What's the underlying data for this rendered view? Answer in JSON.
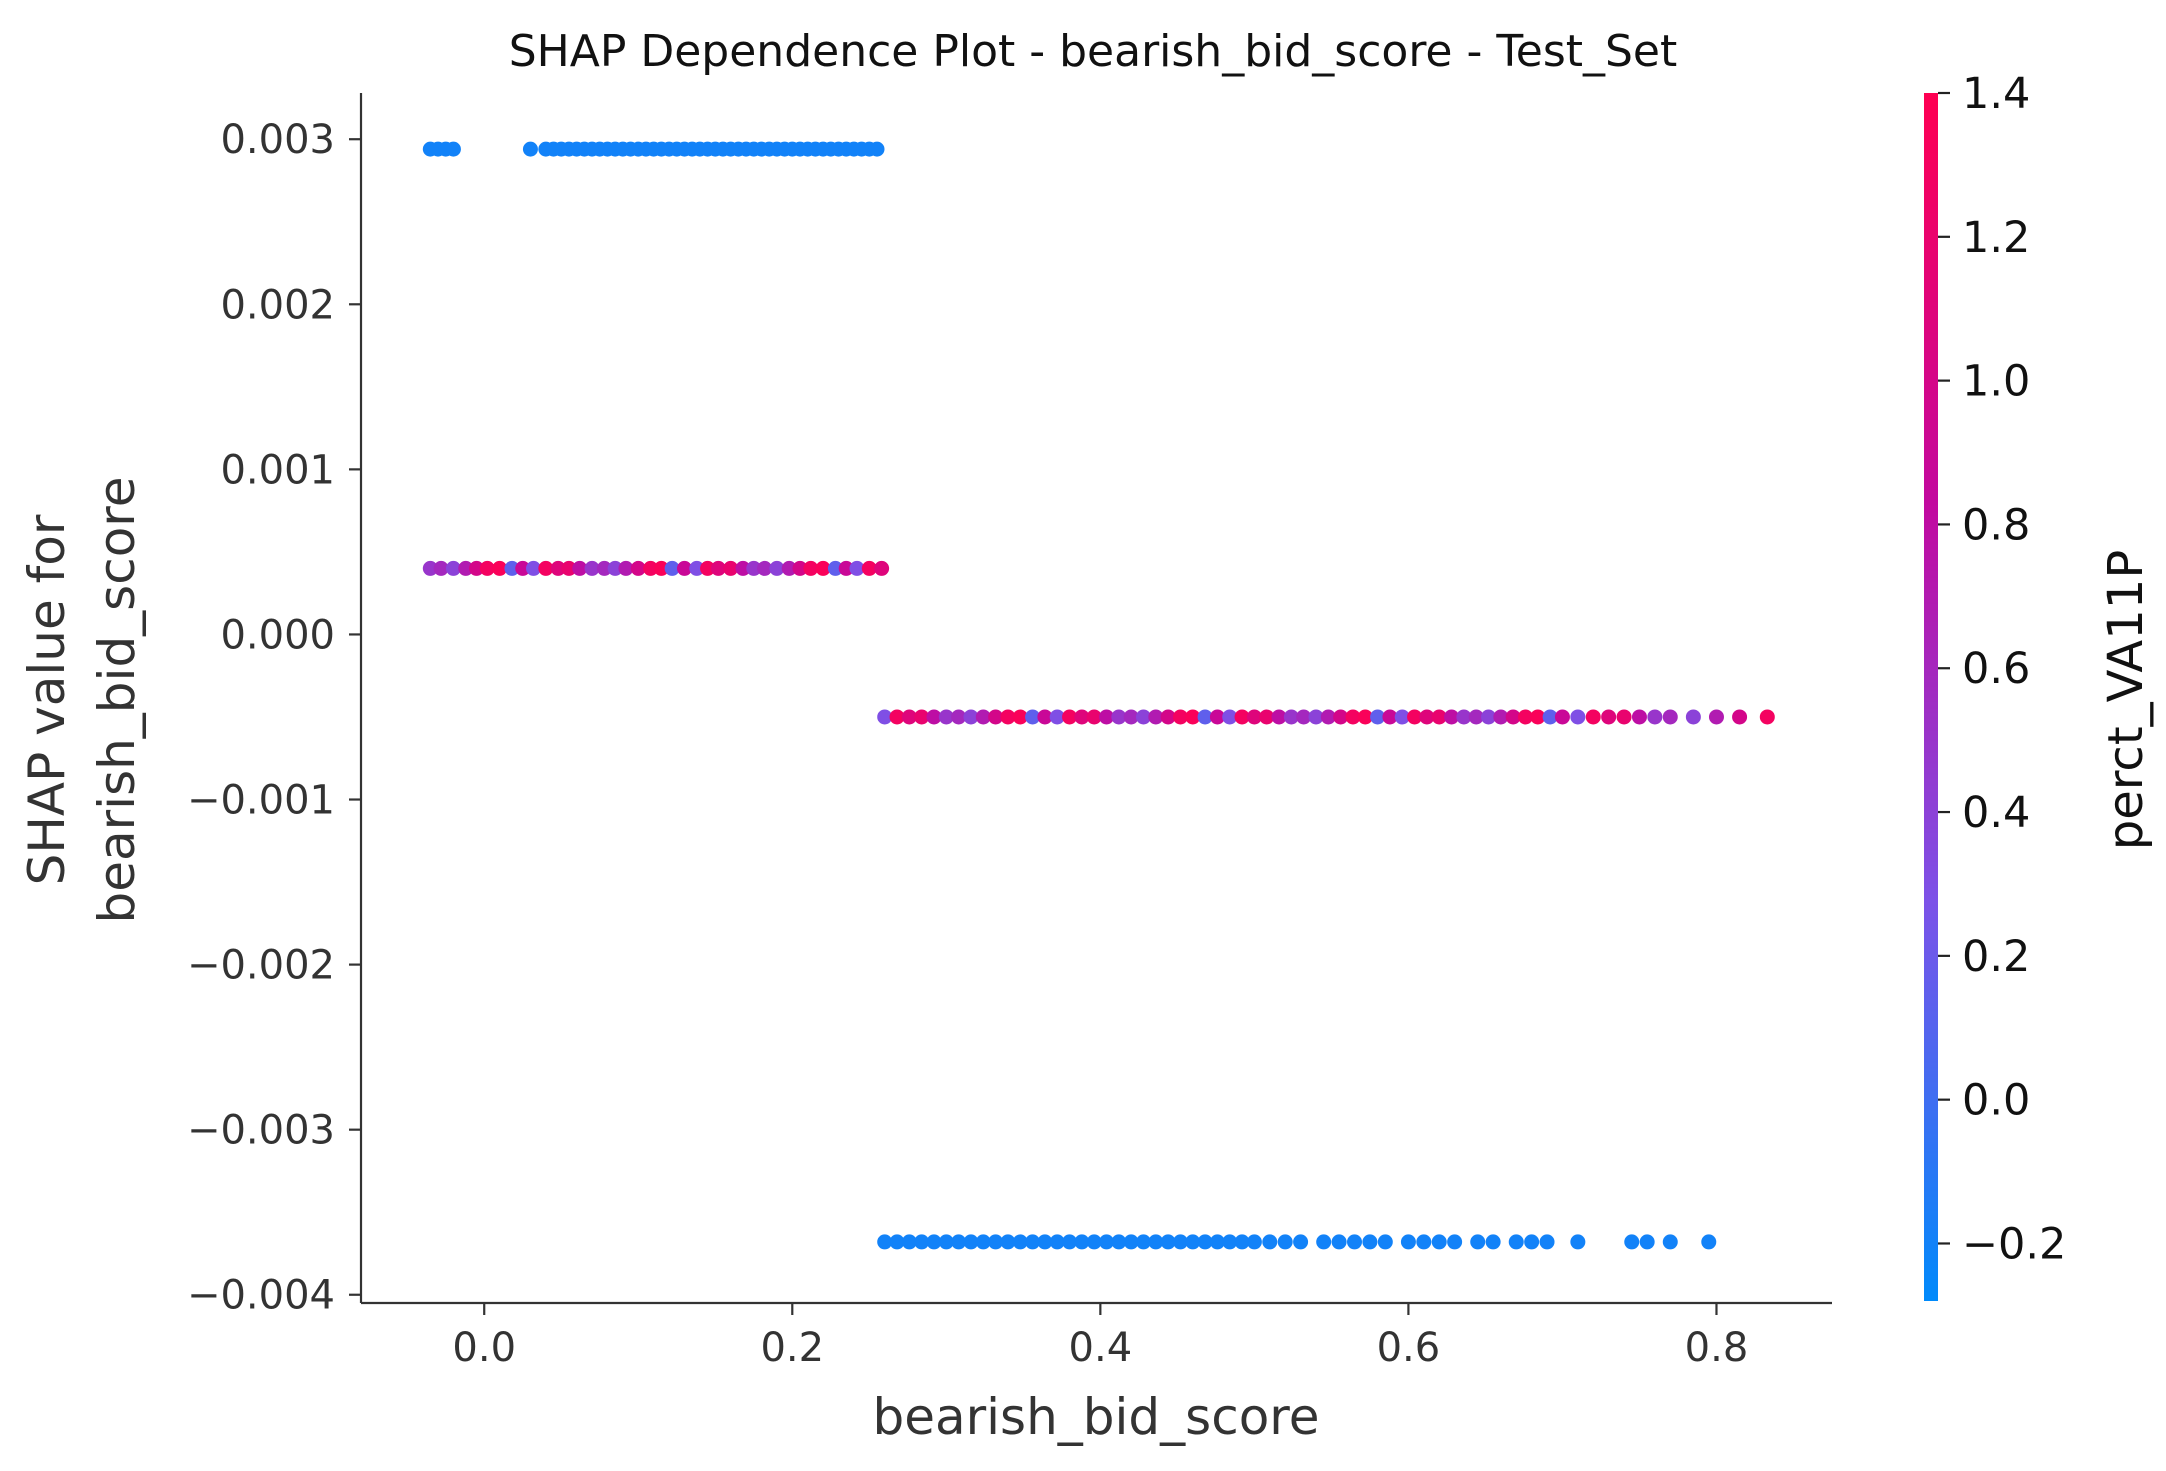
{
  "chart_data": {
    "type": "scatter",
    "title": "SHAP Dependence Plot - bearish_bid_score - Test_Set",
    "xlabel": "bearish_bid_score",
    "ylabel_lines": [
      "SHAP value for",
      "bearish_bid_score"
    ],
    "xlim": [
      -0.08,
      0.875
    ],
    "ylim": [
      -0.00405,
      0.00328
    ],
    "xticks": [
      0.0,
      0.2,
      0.4,
      0.6,
      0.8
    ],
    "xtick_labels": [
      "0.0",
      "0.2",
      "0.4",
      "0.6",
      "0.8"
    ],
    "yticks": [
      0.003,
      0.002,
      0.001,
      0.0,
      -0.001,
      -0.002,
      -0.003,
      -0.004
    ],
    "ytick_labels": [
      "0.003",
      "0.002",
      "0.001",
      "0.000",
      "−0.001",
      "−0.002",
      "−0.003",
      "−0.004"
    ],
    "grid": false,
    "colorbar": {
      "label": "perct_VA11P",
      "range": [
        -0.28,
        1.4
      ],
      "ticks": [
        1.4,
        1.2,
        1.0,
        0.8,
        0.6,
        0.4,
        0.2,
        0.0,
        -0.2
      ],
      "tick_labels": [
        "1.4",
        "1.2",
        "1.0",
        "0.8",
        "0.6",
        "0.4",
        "0.2",
        "0.0",
        "−0.2"
      ],
      "colors": [
        "#008afb",
        "#7c52e8",
        "#c2099f",
        "#ff0052"
      ]
    },
    "clusters": [
      {
        "y": 0.00294,
        "x_range": [
          -0.035,
          0.255
        ],
        "color_value": -0.2,
        "x": [
          -0.035,
          -0.03,
          -0.025,
          -0.02,
          0.03,
          0.04,
          0.045,
          0.05,
          0.055,
          0.06,
          0.065,
          0.07,
          0.075,
          0.08,
          0.085,
          0.09,
          0.095,
          0.1,
          0.105,
          0.11,
          0.115,
          0.12,
          0.125,
          0.13,
          0.135,
          0.14,
          0.145,
          0.15,
          0.155,
          0.16,
          0.165,
          0.17,
          0.175,
          0.18,
          0.185,
          0.19,
          0.195,
          0.2,
          0.205,
          0.21,
          0.215,
          0.22,
          0.225,
          0.23,
          0.235,
          0.24,
          0.245,
          0.25,
          0.255
        ]
      },
      {
        "y": 0.0004,
        "x_range": [
          -0.035,
          0.26
        ],
        "color_value": "mixed",
        "x": [
          -0.035,
          -0.028,
          -0.02,
          -0.012,
          -0.005,
          0.002,
          0.01,
          0.018,
          0.025,
          0.032,
          0.04,
          0.048,
          0.055,
          0.062,
          0.07,
          0.078,
          0.085,
          0.092,
          0.1,
          0.108,
          0.115,
          0.122,
          0.13,
          0.138,
          0.145,
          0.152,
          0.16,
          0.168,
          0.175,
          0.182,
          0.19,
          0.198,
          0.205,
          0.212,
          0.22,
          0.228,
          0.235,
          0.242,
          0.25,
          0.258
        ]
      },
      {
        "y": -0.0005,
        "x_range": [
          0.26,
          0.833
        ],
        "color_value": "mixed",
        "x": [
          0.26,
          0.268,
          0.276,
          0.284,
          0.292,
          0.3,
          0.308,
          0.316,
          0.324,
          0.332,
          0.34,
          0.348,
          0.356,
          0.364,
          0.372,
          0.38,
          0.388,
          0.396,
          0.404,
          0.412,
          0.42,
          0.428,
          0.436,
          0.444,
          0.452,
          0.46,
          0.468,
          0.476,
          0.484,
          0.492,
          0.5,
          0.508,
          0.516,
          0.524,
          0.532,
          0.54,
          0.548,
          0.556,
          0.564,
          0.572,
          0.58,
          0.588,
          0.596,
          0.604,
          0.612,
          0.62,
          0.628,
          0.636,
          0.644,
          0.652,
          0.66,
          0.668,
          0.676,
          0.684,
          0.692,
          0.7,
          0.71,
          0.72,
          0.73,
          0.74,
          0.75,
          0.76,
          0.77,
          0.785,
          0.8,
          0.815,
          0.833
        ]
      },
      {
        "y": -0.00368,
        "x_range": [
          0.26,
          0.795
        ],
        "color_value": -0.2,
        "x": [
          0.26,
          0.268,
          0.276,
          0.284,
          0.292,
          0.3,
          0.308,
          0.316,
          0.324,
          0.332,
          0.34,
          0.348,
          0.356,
          0.364,
          0.372,
          0.38,
          0.388,
          0.396,
          0.404,
          0.412,
          0.42,
          0.428,
          0.436,
          0.444,
          0.452,
          0.46,
          0.468,
          0.476,
          0.484,
          0.492,
          0.5,
          0.51,
          0.52,
          0.53,
          0.545,
          0.555,
          0.565,
          0.575,
          0.585,
          0.6,
          0.61,
          0.62,
          0.63,
          0.645,
          0.655,
          0.67,
          0.68,
          0.69,
          0.71,
          0.745,
          0.755,
          0.77,
          0.795
        ]
      }
    ]
  }
}
